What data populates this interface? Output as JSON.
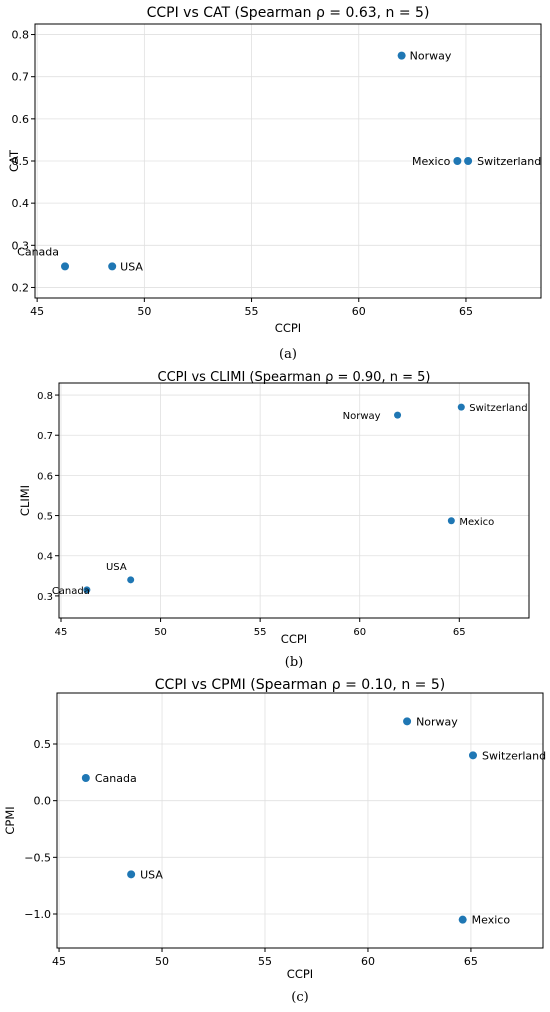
{
  "chart_data": [
    {
      "type": "scatter",
      "title": "CCPI vs CAT (Spearman ρ = 0.63, n = 5)",
      "xlabel": "CCPI",
      "ylabel": "CAT",
      "xlim": [
        44.9,
        68.5
      ],
      "ylim": [
        0.175,
        0.825
      ],
      "xticks": [
        45,
        50,
        55,
        60,
        65
      ],
      "yticks": [
        0.2,
        0.3,
        0.4,
        0.5,
        0.6,
        0.7,
        0.8
      ],
      "grid": true,
      "caption": "(a)",
      "points": [
        {
          "label": "Canada",
          "x": 46.3,
          "y": 0.25
        },
        {
          "label": "USA",
          "x": 48.5,
          "y": 0.25
        },
        {
          "label": "Norway",
          "x": 62.0,
          "y": 0.75
        },
        {
          "label": "Mexico",
          "x": 64.6,
          "y": 0.5
        },
        {
          "label": "Switzerland",
          "x": 65.1,
          "y": 0.5
        }
      ]
    },
    {
      "type": "scatter",
      "title": "CCPI vs CLIMI (Spearman ρ = 0.90, n = 5)",
      "xlabel": "CCPI",
      "ylabel": "CLIMI",
      "xlim": [
        44.9,
        68.5
      ],
      "ylim": [
        0.245,
        0.83
      ],
      "xticks": [
        45,
        50,
        55,
        60,
        65
      ],
      "yticks": [
        0.3,
        0.4,
        0.5,
        0.6,
        0.7,
        0.8
      ],
      "grid": true,
      "caption": "(b)",
      "points": [
        {
          "label": "Canada",
          "x": 46.3,
          "y": 0.315
        },
        {
          "label": "USA",
          "x": 48.5,
          "y": 0.34
        },
        {
          "label": "Norway",
          "x": 61.9,
          "y": 0.75
        },
        {
          "label": "Mexico",
          "x": 64.6,
          "y": 0.487
        },
        {
          "label": "Switzerland",
          "x": 65.1,
          "y": 0.77
        }
      ]
    },
    {
      "type": "scatter",
      "title": "CCPI vs CPMI (Spearman ρ = 0.10, n = 5)",
      "xlabel": "CCPI",
      "ylabel": "CPMI",
      "xlim": [
        44.9,
        68.5
      ],
      "ylim": [
        -1.3,
        0.95
      ],
      "xticks": [
        45,
        50,
        55,
        60,
        65
      ],
      "yticks": [
        -1.0,
        -0.5,
        0.0,
        0.5
      ],
      "grid": true,
      "caption": "(c)",
      "points": [
        {
          "label": "Canada",
          "x": 46.3,
          "y": 0.2
        },
        {
          "label": "USA",
          "x": 48.5,
          "y": -0.65
        },
        {
          "label": "Norway",
          "x": 61.9,
          "y": 0.7
        },
        {
          "label": "Mexico",
          "x": 64.6,
          "y": -1.05
        },
        {
          "label": "Switzerland",
          "x": 65.1,
          "y": 0.4
        }
      ]
    }
  ],
  "colors": {
    "point": "#1f77b4",
    "grid": "#e0e0e0",
    "axis": "#000000"
  }
}
